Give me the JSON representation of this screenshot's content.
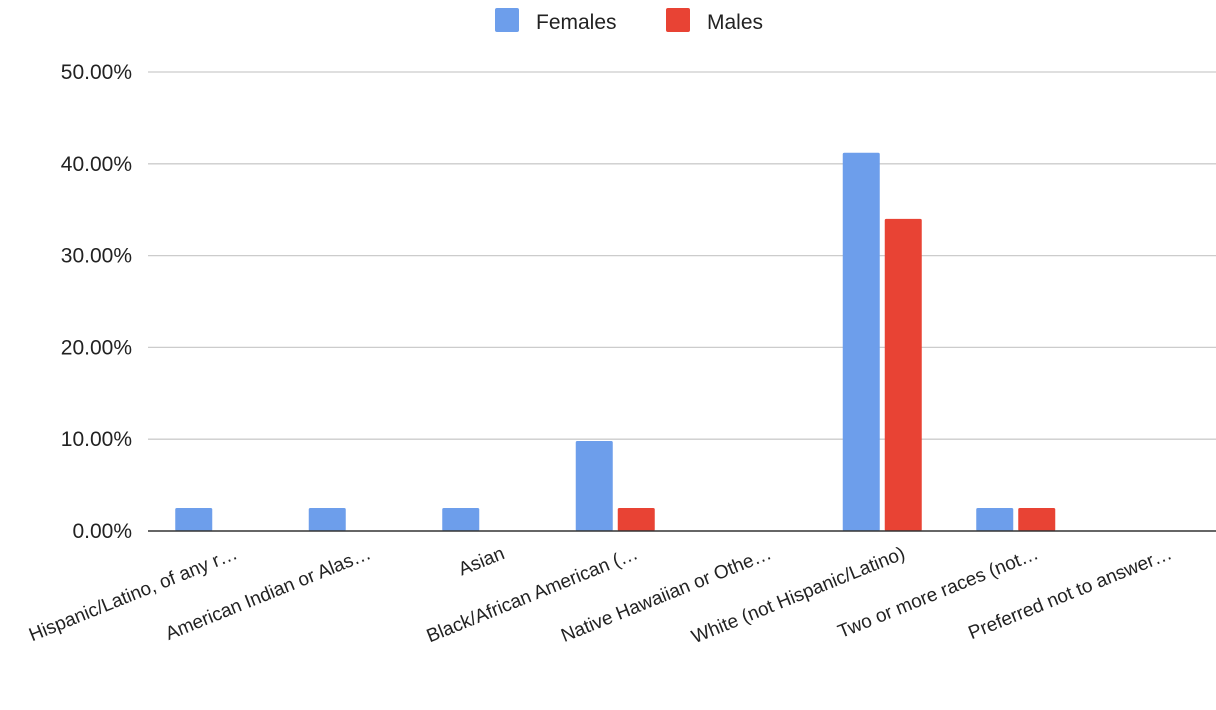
{
  "chart_data": {
    "type": "bar",
    "categories": [
      "Hispanic/Latino, of any r…",
      "American Indian or Alas…",
      "Asian",
      "Black/African American (…",
      "Native Hawaiian or Othe…",
      "White (not Hispanic/Latino)",
      "Two or more races (not…",
      "Preferred not to answer…"
    ],
    "series": [
      {
        "name": "Females",
        "color": "#6D9EEB",
        "values": [
          2.5,
          2.5,
          2.5,
          9.8,
          0,
          41.2,
          2.5,
          0
        ]
      },
      {
        "name": "Males",
        "color": "#E84334",
        "values": [
          0,
          0,
          0,
          2.5,
          0,
          34.0,
          2.5,
          0
        ]
      }
    ],
    "ylim": [
      0,
      50
    ],
    "yticks": [
      0,
      10,
      20,
      30,
      40,
      50
    ],
    "ytick_labels": [
      "0.00%",
      "10.00%",
      "20.00%",
      "30.00%",
      "40.00%",
      "50.00%"
    ],
    "title": "",
    "xlabel": "",
    "ylabel": "",
    "grid": true,
    "legend_position": "top-center",
    "gridline_color": "#cccccc",
    "baseline_color": "#333333"
  }
}
